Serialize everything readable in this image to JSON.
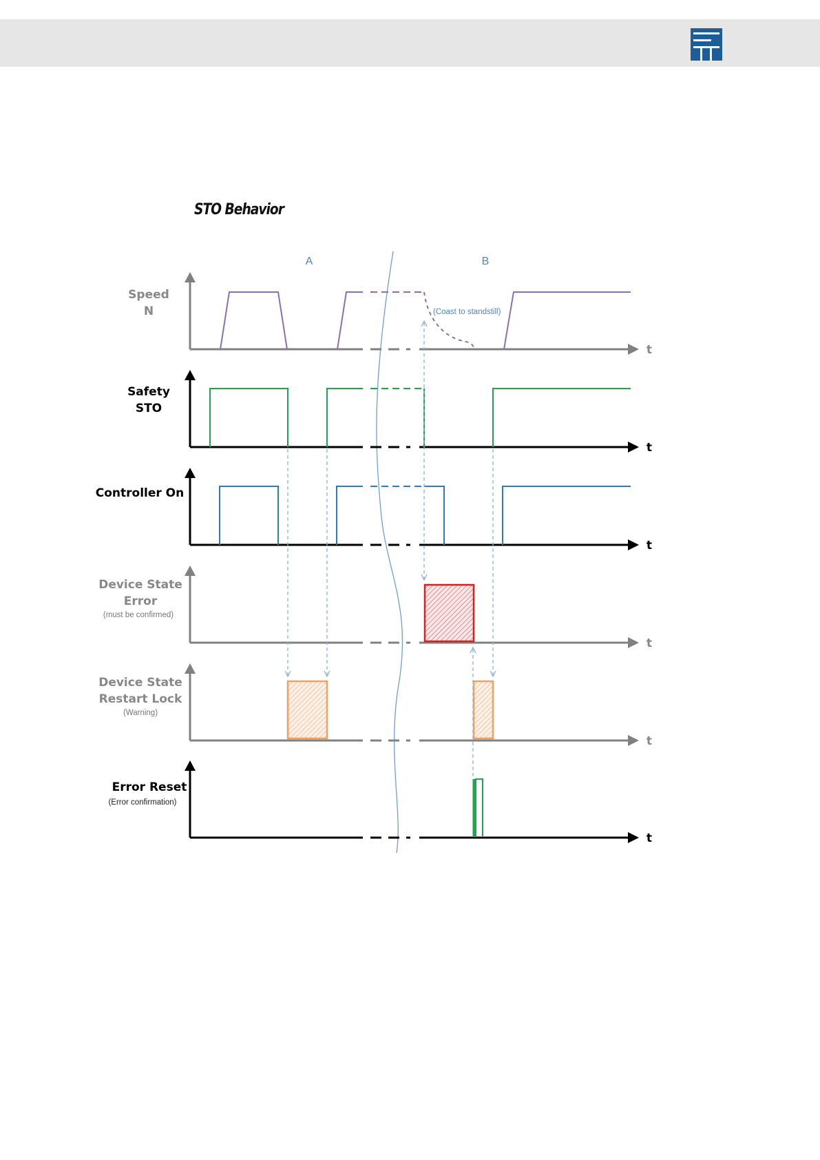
{
  "header": {
    "logo_icon": "company-logo-icon",
    "band_color": "#e6e6e6",
    "logo_color": "#1f5d99"
  },
  "title": "STO Behavior",
  "sections": {
    "a": "A",
    "b": "B"
  },
  "annotation": "(Coast to standstill)",
  "axis_symbol": "t",
  "signals": [
    {
      "id": "speed",
      "label": [
        "Speed",
        "N"
      ],
      "sublabel": "",
      "label_color": "#888888",
      "line_color": "#8a6db5"
    },
    {
      "id": "safety-sto",
      "label": [
        "Safety",
        "STO"
      ],
      "sublabel": "",
      "label_color": "#000000",
      "line_color": "#1aa84a"
    },
    {
      "id": "controller-on",
      "label": [
        "Controller On"
      ],
      "sublabel": "",
      "label_color": "#000000",
      "line_color": "#2a7bc0"
    },
    {
      "id": "device-state-error",
      "label": [
        "Device State",
        "Error"
      ],
      "sublabel": "(must be confirmed)",
      "label_color": "#888888",
      "fill_color": "#d42020"
    },
    {
      "id": "device-state-restart-lock",
      "label": [
        "Device State",
        "Restart Lock"
      ],
      "sublabel": "(Warning)",
      "label_color": "#888888",
      "fill_color": "#f0a060"
    },
    {
      "id": "error-reset",
      "label": [
        "Error Reset"
      ],
      "sublabel": "(Error confirmation)",
      "label_color": "#000000",
      "line_color": "#1aa84a"
    }
  ],
  "colors": {
    "arrow_dashed": "#8fb0e0",
    "section_divider": "#6c9fd8",
    "axis_gray": "#808080",
    "axis_black": "#000000"
  }
}
